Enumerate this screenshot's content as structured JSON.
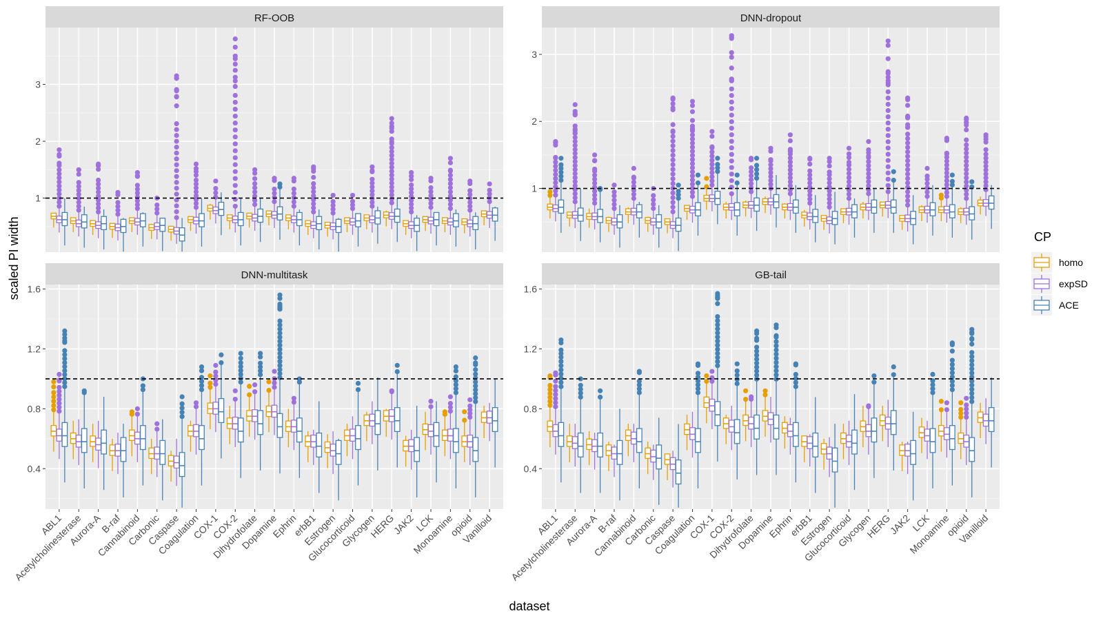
{
  "chart_data": {
    "type": "boxplot",
    "ylabel": "scaled PI width",
    "xlabel": "dataset",
    "categories": [
      "ABL1",
      "Acetylcholinesterase",
      "Aurora-A",
      "B-raf",
      "Cannabinoid",
      "Carbonic",
      "Caspase",
      "Coagulation",
      "COX-1",
      "COX-2",
      "Dihydrofolate",
      "Dopamine",
      "Ephrin",
      "erbB1",
      "Estrogen",
      "Glucocorticoid",
      "Glycogen",
      "HERG",
      "JAK2",
      "LCK",
      "Monoamine",
      "opioid",
      "Vanilloid"
    ],
    "reference_line": 1,
    "legend": {
      "title": "CP",
      "position": "right",
      "entries": [
        {
          "name": "homo",
          "color": "#E69F00"
        },
        {
          "name": "expSD",
          "color": "#9F71DB"
        },
        {
          "name": "ACE",
          "color": "#4682B4"
        }
      ]
    },
    "panels": [
      {
        "title": "RF-OOB",
        "ylim": [
          0.05,
          4.0
        ],
        "yticks": [
          1,
          2,
          3
        ],
        "series": {
          "homo": {
            "median": [
              0.68,
              0.6,
              0.55,
              0.5,
              0.6,
              0.48,
              0.45,
              0.62,
              0.82,
              0.65,
              0.68,
              0.72,
              0.65,
              0.55,
              0.52,
              0.6,
              0.65,
              0.7,
              0.55,
              0.62,
              0.6,
              0.58,
              0.72
            ],
            "max": [
              0.72,
              0.65,
              0.6,
              0.52,
              0.64,
              0.55,
              0.48,
              0.65,
              0.9,
              0.7,
              0.72,
              0.78,
              0.7,
              0.6,
              0.55,
              0.63,
              0.7,
              0.78,
              0.6,
              0.66,
              0.65,
              0.62,
              0.76
            ]
          },
          "expSD": {
            "median": [
              0.62,
              0.55,
              0.52,
              0.48,
              0.58,
              0.5,
              0.42,
              0.6,
              0.78,
              0.62,
              0.65,
              0.7,
              0.62,
              0.52,
              0.5,
              0.58,
              0.62,
              0.68,
              0.52,
              0.6,
              0.58,
              0.55,
              0.7
            ],
            "max": [
              1.85,
              1.5,
              1.6,
              1.1,
              1.45,
              1.0,
              3.15,
              1.6,
              1.3,
              3.8,
              1.5,
              1.35,
              1.35,
              1.55,
              1.05,
              1.05,
              1.55,
              2.4,
              1.45,
              1.35,
              1.7,
              1.3,
              1.25
            ]
          },
          "ACE": {
            "median": [
              0.62,
              0.58,
              0.55,
              0.5,
              0.6,
              0.52,
              0.35,
              0.6,
              0.8,
              0.62,
              0.68,
              0.72,
              0.62,
              0.55,
              0.5,
              0.6,
              0.65,
              0.68,
              0.52,
              0.62,
              0.6,
              0.55,
              0.7
            ],
            "max": [
              1.0,
              0.85,
              0.8,
              0.65,
              0.75,
              0.6,
              0.65,
              1.0,
              1.1,
              1.0,
              1.0,
              1.25,
              0.8,
              0.8,
              0.65,
              0.7,
              0.85,
              1.0,
              0.7,
              0.75,
              0.8,
              0.75,
              0.85
            ]
          }
        }
      },
      {
        "title": "DNN-dropout",
        "ylim": [
          0.05,
          3.4
        ],
        "yticks": [
          1,
          2,
          3
        ],
        "series": {
          "homo": {
            "median": [
              0.72,
              0.6,
              0.58,
              0.52,
              0.65,
              0.52,
              0.5,
              0.7,
              0.85,
              0.72,
              0.75,
              0.8,
              0.72,
              0.6,
              0.55,
              0.65,
              0.72,
              0.75,
              0.55,
              0.68,
              0.68,
              0.65,
              0.78
            ],
            "max": [
              0.95,
              0.65,
              0.7,
              0.58,
              0.72,
              0.58,
              0.55,
              0.75,
              1.15,
              0.8,
              0.82,
              0.88,
              0.78,
              0.68,
              0.6,
              0.7,
              0.8,
              0.8,
              0.6,
              0.75,
              0.9,
              0.72,
              0.88
            ]
          },
          "expSD": {
            "median": [
              0.7,
              0.6,
              0.58,
              0.5,
              0.65,
              0.5,
              0.45,
              0.68,
              0.85,
              0.72,
              0.75,
              0.8,
              0.72,
              0.58,
              0.52,
              0.65,
              0.72,
              0.75,
              0.55,
              0.68,
              0.68,
              0.65,
              0.78
            ],
            "max": [
              1.7,
              2.25,
              1.5,
              1.05,
              1.3,
              1.0,
              2.35,
              2.3,
              1.85,
              3.28,
              1.45,
              1.6,
              1.8,
              1.45,
              1.45,
              1.6,
              1.7,
              3.2,
              2.35,
              1.3,
              1.75,
              2.05,
              1.8
            ]
          },
          "ACE": {
            "median": [
              0.72,
              0.6,
              0.58,
              0.5,
              0.65,
              0.5,
              0.45,
              0.68,
              0.85,
              0.68,
              0.75,
              0.8,
              0.72,
              0.58,
              0.55,
              0.65,
              0.72,
              0.72,
              0.55,
              0.68,
              0.65,
              0.62,
              0.78
            ],
            "max": [
              1.45,
              1.0,
              1.0,
              0.75,
              0.8,
              0.75,
              1.05,
              1.2,
              1.45,
              1.2,
              1.45,
              1.2,
              1.05,
              0.9,
              0.95,
              0.85,
              1.0,
              1.25,
              0.9,
              1.05,
              1.2,
              1.1,
              1.05
            ]
          }
        }
      },
      {
        "title": "DNN-multitask",
        "ylim": [
          0.13,
          1.63
        ],
        "yticks": [
          0.4,
          0.8,
          1.2,
          1.6
        ],
        "series": {
          "homo": {
            "median": [
              0.65,
              0.6,
              0.58,
              0.52,
              0.62,
              0.5,
              0.45,
              0.65,
              0.8,
              0.7,
              0.75,
              0.78,
              0.68,
              0.58,
              0.54,
              0.62,
              0.72,
              0.75,
              0.55,
              0.66,
              0.62,
              0.58,
              0.74
            ],
            "max": [
              0.98,
              0.72,
              0.7,
              0.6,
              0.78,
              0.6,
              0.52,
              0.72,
              1.02,
              0.82,
              0.95,
              0.98,
              0.8,
              0.65,
              0.63,
              0.7,
              0.78,
              0.8,
              0.62,
              0.78,
              0.78,
              0.78,
              0.82
            ]
          },
          "expSD": {
            "median": [
              0.62,
              0.58,
              0.56,
              0.52,
              0.6,
              0.5,
              0.44,
              0.65,
              0.8,
              0.7,
              0.75,
              0.78,
              0.68,
              0.58,
              0.52,
              0.62,
              0.72,
              0.75,
              0.55,
              0.65,
              0.62,
              0.58,
              0.74
            ],
            "max": [
              1.03,
              0.73,
              0.72,
              0.64,
              0.8,
              0.7,
              0.6,
              0.84,
              1.09,
              0.92,
              0.96,
              1.05,
              0.87,
              0.66,
              0.65,
              0.75,
              0.85,
              0.92,
              0.66,
              0.85,
              0.88,
              0.86,
              0.84
            ]
          },
          "ACE": {
            "median": [
              0.62,
              0.58,
              0.57,
              0.52,
              0.6,
              0.5,
              0.42,
              0.6,
              0.78,
              0.65,
              0.7,
              0.68,
              0.65,
              0.55,
              0.5,
              0.6,
              0.7,
              0.72,
              0.52,
              0.62,
              0.58,
              0.52,
              0.72
            ],
            "max": [
              1.32,
              0.92,
              0.88,
              0.7,
              1.0,
              0.73,
              0.88,
              1.08,
              1.16,
              1.17,
              1.17,
              1.56,
              1.0,
              0.85,
              0.6,
              0.97,
              1.01,
              1.09,
              0.82,
              0.85,
              1.08,
              1.14,
              1.0
            ]
          }
        }
      },
      {
        "title": "GB-tail",
        "ylim": [
          0.13,
          1.63
        ],
        "yticks": [
          0.4,
          0.8,
          1.2,
          1.6
        ],
        "series": {
          "homo": {
            "median": [
              0.68,
              0.58,
              0.56,
              0.52,
              0.62,
              0.5,
              0.46,
              0.66,
              0.84,
              0.7,
              0.72,
              0.75,
              0.67,
              0.58,
              0.53,
              0.6,
              0.68,
              0.72,
              0.52,
              0.64,
              0.65,
              0.6,
              0.74
            ],
            "max": [
              1.02,
              0.7,
              0.65,
              0.58,
              0.7,
              0.58,
              0.5,
              0.76,
              1.02,
              0.76,
              0.92,
              0.92,
              0.75,
              0.62,
              0.6,
              0.7,
              0.82,
              0.82,
              0.58,
              0.74,
              0.85,
              0.84,
              0.84
            ]
          },
          "expSD": {
            "median": [
              0.65,
              0.57,
              0.55,
              0.5,
              0.6,
              0.48,
              0.43,
              0.63,
              0.82,
              0.68,
              0.7,
              0.73,
              0.65,
              0.57,
              0.5,
              0.58,
              0.65,
              0.7,
              0.52,
              0.62,
              0.63,
              0.58,
              0.72
            ],
            "max": [
              1.04,
              0.7,
              0.64,
              0.56,
              0.7,
              0.56,
              0.52,
              0.78,
              1.05,
              0.82,
              0.88,
              0.88,
              0.74,
              0.63,
              0.61,
              0.72,
              0.82,
              0.86,
              0.58,
              0.72,
              0.84,
              0.87,
              0.87
            ]
          },
          "ACE": {
            "median": [
              0.62,
              0.55,
              0.55,
              0.5,
              0.58,
              0.47,
              0.37,
              0.58,
              0.76,
              0.64,
              0.67,
              0.67,
              0.62,
              0.55,
              0.45,
              0.57,
              0.65,
              0.7,
              0.5,
              0.58,
              0.6,
              0.52,
              0.72
            ],
            "max": [
              1.26,
              1.0,
              0.92,
              0.8,
              1.05,
              0.74,
              0.7,
              1.1,
              1.57,
              1.1,
              1.32,
              1.36,
              1.1,
              0.88,
              0.7,
              0.9,
              1.02,
              1.08,
              0.78,
              1.03,
              1.24,
              1.33,
              1.01
            ]
          }
        }
      }
    ]
  }
}
